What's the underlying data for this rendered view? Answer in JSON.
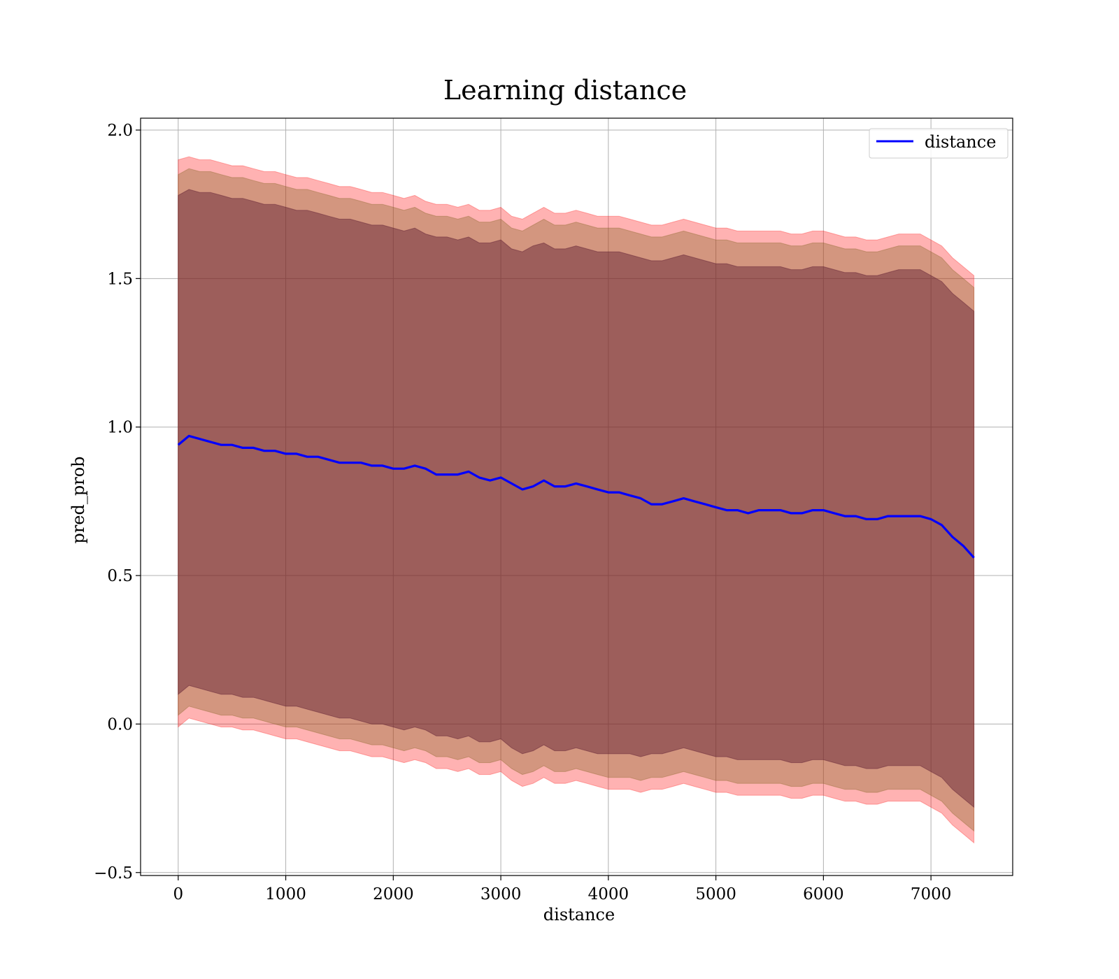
{
  "chart_data": {
    "type": "line",
    "title": "Learning distance",
    "xlabel": "distance",
    "ylabel": "pred_prob",
    "xlim": [
      -350,
      7760
    ],
    "ylim": [
      -0.51,
      2.04
    ],
    "x_ticks": [
      0,
      1000,
      2000,
      3000,
      4000,
      5000,
      6000,
      7000
    ],
    "x_tick_labels": [
      "0",
      "1000",
      "2000",
      "3000",
      "4000",
      "5000",
      "6000",
      "7000"
    ],
    "y_ticks": [
      -0.5,
      0.0,
      0.5,
      1.0,
      1.5,
      2.0
    ],
    "y_tick_labels": [
      "−0.5",
      "0.0",
      "0.5",
      "1.0",
      "1.5",
      "2.0"
    ],
    "grid": true,
    "legend_position": "top-right",
    "series": [
      {
        "name": "distance",
        "color": "#0000ff",
        "x": [
          0,
          100,
          200,
          300,
          400,
          500,
          600,
          700,
          800,
          900,
          1000,
          1100,
          1200,
          1300,
          1400,
          1500,
          1600,
          1700,
          1800,
          1900,
          2000,
          2100,
          2200,
          2300,
          2400,
          2500,
          2600,
          2700,
          2800,
          2900,
          3000,
          3100,
          3200,
          3300,
          3400,
          3500,
          3600,
          3700,
          3800,
          3900,
          4000,
          4100,
          4200,
          4300,
          4400,
          4500,
          4600,
          4700,
          4800,
          4900,
          5000,
          5100,
          5200,
          5300,
          5400,
          5500,
          5600,
          5700,
          5800,
          5900,
          6000,
          6100,
          6200,
          6300,
          6400,
          6500,
          6600,
          6700,
          6800,
          6900,
          7000,
          7100,
          7200,
          7300,
          7400
        ],
        "y": [
          0.94,
          0.97,
          0.96,
          0.95,
          0.94,
          0.94,
          0.93,
          0.93,
          0.92,
          0.92,
          0.91,
          0.91,
          0.9,
          0.9,
          0.89,
          0.88,
          0.88,
          0.88,
          0.87,
          0.87,
          0.86,
          0.86,
          0.87,
          0.86,
          0.84,
          0.84,
          0.84,
          0.85,
          0.83,
          0.82,
          0.83,
          0.81,
          0.79,
          0.8,
          0.82,
          0.8,
          0.8,
          0.81,
          0.8,
          0.79,
          0.78,
          0.78,
          0.77,
          0.76,
          0.74,
          0.74,
          0.75,
          0.76,
          0.75,
          0.74,
          0.73,
          0.72,
          0.72,
          0.71,
          0.72,
          0.72,
          0.72,
          0.71,
          0.71,
          0.72,
          0.72,
          0.71,
          0.7,
          0.7,
          0.69,
          0.69,
          0.7,
          0.7,
          0.7,
          0.7,
          0.69,
          0.67,
          0.63,
          0.6,
          0.56
        ]
      }
    ],
    "bands": [
      {
        "color": "#ff0000",
        "opacity": 0.3,
        "upper": [
          1.9,
          1.91,
          1.9,
          1.9,
          1.89,
          1.88,
          1.88,
          1.87,
          1.86,
          1.86,
          1.85,
          1.84,
          1.84,
          1.83,
          1.82,
          1.81,
          1.81,
          1.8,
          1.79,
          1.79,
          1.78,
          1.77,
          1.78,
          1.76,
          1.75,
          1.75,
          1.74,
          1.75,
          1.73,
          1.73,
          1.74,
          1.71,
          1.7,
          1.72,
          1.74,
          1.72,
          1.72,
          1.73,
          1.72,
          1.71,
          1.71,
          1.71,
          1.7,
          1.69,
          1.68,
          1.68,
          1.69,
          1.7,
          1.69,
          1.68,
          1.67,
          1.67,
          1.66,
          1.66,
          1.66,
          1.66,
          1.66,
          1.65,
          1.65,
          1.66,
          1.66,
          1.65,
          1.64,
          1.64,
          1.63,
          1.63,
          1.64,
          1.65,
          1.65,
          1.65,
          1.63,
          1.61,
          1.57,
          1.54,
          1.51
        ],
        "lower": [
          -0.01,
          0.02,
          0.01,
          0.0,
          -0.01,
          -0.01,
          -0.02,
          -0.02,
          -0.03,
          -0.04,
          -0.05,
          -0.05,
          -0.06,
          -0.07,
          -0.08,
          -0.09,
          -0.09,
          -0.1,
          -0.11,
          -0.11,
          -0.12,
          -0.13,
          -0.12,
          -0.13,
          -0.15,
          -0.15,
          -0.16,
          -0.15,
          -0.17,
          -0.17,
          -0.16,
          -0.19,
          -0.21,
          -0.2,
          -0.18,
          -0.2,
          -0.2,
          -0.19,
          -0.2,
          -0.21,
          -0.22,
          -0.22,
          -0.22,
          -0.23,
          -0.22,
          -0.22,
          -0.21,
          -0.2,
          -0.21,
          -0.22,
          -0.23,
          -0.23,
          -0.24,
          -0.24,
          -0.24,
          -0.24,
          -0.24,
          -0.25,
          -0.25,
          -0.24,
          -0.24,
          -0.25,
          -0.26,
          -0.26,
          -0.27,
          -0.27,
          -0.26,
          -0.26,
          -0.26,
          -0.26,
          -0.28,
          -0.3,
          -0.34,
          -0.37,
          -0.4
        ]
      },
      {
        "color": "#806020",
        "opacity": 0.35,
        "upper": [
          1.85,
          1.87,
          1.86,
          1.86,
          1.85,
          1.84,
          1.84,
          1.83,
          1.82,
          1.82,
          1.81,
          1.8,
          1.8,
          1.79,
          1.78,
          1.77,
          1.77,
          1.76,
          1.75,
          1.75,
          1.74,
          1.73,
          1.74,
          1.72,
          1.71,
          1.71,
          1.7,
          1.71,
          1.69,
          1.69,
          1.7,
          1.67,
          1.66,
          1.68,
          1.7,
          1.68,
          1.68,
          1.69,
          1.68,
          1.67,
          1.67,
          1.67,
          1.66,
          1.65,
          1.64,
          1.64,
          1.65,
          1.66,
          1.65,
          1.64,
          1.63,
          1.63,
          1.62,
          1.62,
          1.62,
          1.62,
          1.62,
          1.61,
          1.61,
          1.62,
          1.62,
          1.61,
          1.6,
          1.6,
          1.59,
          1.59,
          1.6,
          1.61,
          1.61,
          1.61,
          1.59,
          1.57,
          1.53,
          1.5,
          1.47
        ],
        "lower": [
          0.03,
          0.06,
          0.05,
          0.04,
          0.03,
          0.03,
          0.02,
          0.02,
          0.01,
          0.0,
          -0.01,
          -0.01,
          -0.02,
          -0.03,
          -0.04,
          -0.05,
          -0.05,
          -0.06,
          -0.07,
          -0.07,
          -0.08,
          -0.09,
          -0.08,
          -0.09,
          -0.11,
          -0.11,
          -0.12,
          -0.11,
          -0.13,
          -0.13,
          -0.12,
          -0.15,
          -0.17,
          -0.16,
          -0.14,
          -0.16,
          -0.16,
          -0.15,
          -0.16,
          -0.17,
          -0.18,
          -0.18,
          -0.18,
          -0.19,
          -0.18,
          -0.18,
          -0.17,
          -0.16,
          -0.17,
          -0.18,
          -0.19,
          -0.19,
          -0.2,
          -0.2,
          -0.2,
          -0.2,
          -0.2,
          -0.21,
          -0.21,
          -0.2,
          -0.2,
          -0.21,
          -0.22,
          -0.22,
          -0.23,
          -0.23,
          -0.22,
          -0.22,
          -0.22,
          -0.22,
          -0.24,
          -0.26,
          -0.3,
          -0.33,
          -0.36
        ]
      },
      {
        "color": "#5a1a30",
        "opacity": 0.45,
        "upper": [
          1.78,
          1.8,
          1.79,
          1.79,
          1.78,
          1.77,
          1.77,
          1.76,
          1.75,
          1.75,
          1.74,
          1.73,
          1.73,
          1.72,
          1.71,
          1.7,
          1.7,
          1.69,
          1.68,
          1.68,
          1.67,
          1.66,
          1.67,
          1.65,
          1.64,
          1.64,
          1.63,
          1.64,
          1.62,
          1.62,
          1.63,
          1.6,
          1.59,
          1.61,
          1.62,
          1.6,
          1.6,
          1.61,
          1.6,
          1.59,
          1.59,
          1.59,
          1.58,
          1.57,
          1.56,
          1.56,
          1.57,
          1.58,
          1.57,
          1.56,
          1.55,
          1.55,
          1.54,
          1.54,
          1.54,
          1.54,
          1.54,
          1.53,
          1.53,
          1.54,
          1.54,
          1.53,
          1.52,
          1.52,
          1.51,
          1.51,
          1.52,
          1.53,
          1.53,
          1.53,
          1.51,
          1.49,
          1.45,
          1.42,
          1.39
        ],
        "lower": [
          0.1,
          0.13,
          0.12,
          0.11,
          0.1,
          0.1,
          0.09,
          0.09,
          0.08,
          0.07,
          0.06,
          0.06,
          0.05,
          0.04,
          0.03,
          0.02,
          0.02,
          0.01,
          0.0,
          0.0,
          -0.01,
          -0.02,
          -0.01,
          -0.02,
          -0.04,
          -0.04,
          -0.05,
          -0.04,
          -0.06,
          -0.06,
          -0.05,
          -0.08,
          -0.1,
          -0.09,
          -0.07,
          -0.09,
          -0.09,
          -0.08,
          -0.09,
          -0.1,
          -0.1,
          -0.1,
          -0.1,
          -0.11,
          -0.1,
          -0.1,
          -0.09,
          -0.08,
          -0.09,
          -0.1,
          -0.11,
          -0.11,
          -0.12,
          -0.12,
          -0.12,
          -0.12,
          -0.12,
          -0.13,
          -0.13,
          -0.12,
          -0.12,
          -0.13,
          -0.14,
          -0.14,
          -0.15,
          -0.15,
          -0.14,
          -0.14,
          -0.14,
          -0.14,
          -0.16,
          -0.18,
          -0.22,
          -0.25,
          -0.28
        ]
      }
    ]
  }
}
